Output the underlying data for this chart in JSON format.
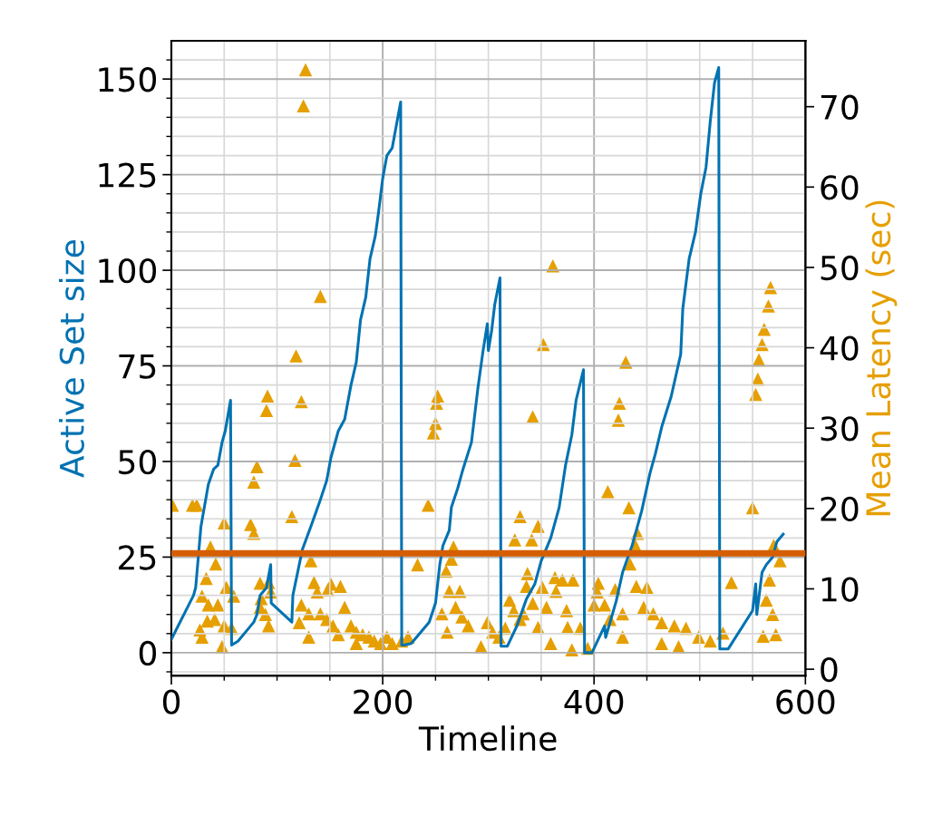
{
  "chart_data": {
    "type": "line",
    "xlabel": "Timeline",
    "ylabel": "Active Set size",
    "y2label": "Mean Latency (sec)",
    "xlim": [
      0,
      600
    ],
    "xticks": [
      0,
      {
        "value": 50,
        "label": null
      },
      {
        "value": 100,
        "label": null
      },
      {
        "value": 150,
        "label": null
      },
      200,
      {
        "value": 250,
        "label": null
      },
      {
        "value": 300,
        "label": null
      },
      {
        "value": 350,
        "label": null
      },
      400,
      {
        "value": 450,
        "label": null
      },
      {
        "value": 500,
        "label": null
      },
      {
        "value": 550,
        "label": null
      },
      600
    ],
    "ylim": [
      -6,
      160
    ],
    "yticks": [
      {
        "value": -5,
        "label": null
      },
      0,
      {
        "value": 5,
        "label": null
      },
      {
        "value": 10,
        "label": null
      },
      {
        "value": 15,
        "label": null
      },
      {
        "value": 20,
        "label": null
      },
      25,
      {
        "value": 30,
        "label": null
      },
      {
        "value": 35,
        "label": null
      },
      {
        "value": 40,
        "label": null
      },
      {
        "value": 45,
        "label": null
      },
      50,
      {
        "value": 55,
        "label": null
      },
      {
        "value": 60,
        "label": null
      },
      {
        "value": 65,
        "label": null
      },
      {
        "value": 70,
        "label": null
      },
      75,
      {
        "value": 80,
        "label": null
      },
      {
        "value": 85,
        "label": null
      },
      {
        "value": 90,
        "label": null
      },
      {
        "value": 95,
        "label": null
      },
      100,
      {
        "value": 105,
        "label": null
      },
      {
        "value": 110,
        "label": null
      },
      {
        "value": 115,
        "label": null
      },
      {
        "value": 120,
        "label": null
      },
      125,
      {
        "value": 130,
        "label": null
      },
      {
        "value": 135,
        "label": null
      },
      {
        "value": 140,
        "label": null
      },
      {
        "value": 145,
        "label": null
      },
      150,
      {
        "value": 155,
        "label": null
      }
    ],
    "y2lim": [
      -0.8,
      78.2
    ],
    "y2ticks": [
      0,
      10,
      20,
      30,
      40,
      50,
      60,
      70
    ],
    "grid": true,
    "series": [
      {
        "color": "#0072b2",
        "marker": "none",
        "line_style": "solid",
        "x": [
          0,
          21,
          23,
          28,
          35,
          40,
          44,
          48,
          51,
          56,
          57,
          63,
          75,
          78,
          81,
          84,
          90,
          94,
          94.5,
          114,
          115,
          124,
          132,
          141,
          147,
          151,
          158,
          164,
          170,
          175,
          179,
          184,
          188,
          193,
          196,
          200,
          204,
          209,
          213,
          217,
          218,
          220,
          227,
          244,
          250,
          254,
          257,
          263,
          265,
          271,
          276,
          284,
          290,
          295,
          299,
          300,
          303,
          306,
          311,
          312,
          318,
          327,
          336,
          344,
          350,
          359,
          367,
          373,
          379,
          383,
          390,
          391,
          398,
          410,
          411,
          421,
          427,
          436,
          445,
          453,
          458,
          464,
          473,
          482,
          484,
          490,
          496,
          501,
          506,
          510,
          514,
          518,
          519,
          527,
          550,
          553,
          554,
          559,
          563,
          569,
          573,
          579
        ],
        "values": [
          3.5,
          15,
          17,
          33,
          44,
          48,
          49,
          55,
          58,
          66,
          2,
          3,
          7,
          8,
          10,
          15,
          17,
          23,
          13,
          8,
          15,
          27,
          33,
          40,
          45,
          51,
          58,
          61,
          70,
          76,
          87,
          93,
          103,
          109,
          115,
          124,
          130,
          132,
          138,
          144,
          2,
          2,
          2.4,
          8,
          13,
          23,
          28,
          32,
          38,
          43,
          48,
          55,
          69,
          79,
          86,
          79,
          84,
          91,
          98,
          1.7,
          1.7,
          7,
          14,
          18,
          24,
          30,
          38,
          49,
          57,
          66,
          74,
          0,
          0,
          7,
          4,
          13.5,
          21,
          28,
          37,
          47,
          52,
          59,
          67,
          78,
          90,
          103,
          110,
          120,
          127,
          139,
          149,
          153,
          1,
          1,
          11,
          18,
          10,
          21,
          23,
          25,
          29,
          31
        ]
      },
      {
        "type": "scatter",
        "axis": "y2",
        "color": "#e69f00",
        "marker": "triangle",
        "x": [
          1,
          20,
          24,
          50,
          37,
          42,
          33,
          29,
          35,
          44,
          27,
          34,
          41,
          50,
          57,
          29,
          48,
          52,
          59,
          78,
          75,
          78,
          81,
          91,
          90,
          84,
          92,
          85,
          94,
          84,
          89,
          92,
          114,
          117,
          123,
          118,
          127,
          125,
          141,
          132,
          135,
          138,
          123,
          121,
          130,
          130,
          141,
          148,
          151,
          160,
          147,
          153,
          164,
          158,
          170,
          175,
          181,
          175,
          187,
          192,
          198,
          204,
          209,
          218,
          224,
          233,
          243,
          248,
          250,
          251,
          252,
          267,
          265,
          260,
          263,
          273,
          256,
          269,
          275,
          261,
          281,
          293,
          299,
          304,
          310,
          316,
          320,
          324,
          330,
          333,
          325,
          330,
          337,
          336,
          341,
          342,
          342,
          347,
          347,
          351,
          352,
          355,
          359,
          361,
          363,
          364,
          370,
          374,
          375,
          379,
          380,
          387,
          394,
          400,
          403,
          404,
          410,
          413,
          415,
          420,
          423,
          424,
          427,
          427,
          430,
          433,
          434,
          439,
          440,
          441,
          447,
          450,
          456,
          464,
          464,
          476,
          480,
          487,
          499,
          510,
          522,
          530,
          550,
          553,
          555,
          556,
          559,
          560,
          561,
          563,
          565,
          566,
          567,
          569,
          570,
          572,
          576
        ],
        "values": [
          20.4,
          20.4,
          20.4,
          18.2,
          15.2,
          13.1,
          11.3,
          9.1,
          8,
          8,
          4.9,
          6,
          6.2,
          5.4,
          5.1,
          4,
          2.8,
          10.2,
          9.1,
          16.9,
          18,
          23.3,
          25.2,
          34,
          32.2,
          10.7,
          10.8,
          8.8,
          9.6,
          7.7,
          6.8,
          5.4,
          19,
          26,
          33.3,
          39,
          74.6,
          70.1,
          46.4,
          13.5,
          10.8,
          9.6,
          8,
          5.8,
          6.9,
          4,
          6.9,
          9.9,
          10.6,
          10.3,
          6.2,
          5.4,
          7.7,
          4.3,
          5.4,
          4.6,
          4.3,
          3.2,
          4,
          3.5,
          3.2,
          4,
          3.2,
          3.5,
          4,
          13,
          20.4,
          29.4,
          30.6,
          33.1,
          34,
          15.2,
          13.7,
          12.2,
          9.7,
          9.7,
          6.9,
          7.7,
          6.5,
          4.6,
          5.4,
          2.8,
          5.8,
          4.6,
          4,
          5.1,
          8.6,
          7.3,
          6.2,
          6.9,
          16.1,
          19,
          11.9,
          10.3,
          16.1,
          31.4,
          8.2,
          17.8,
          5.2,
          10.2,
          40.4,
          7.7,
          3.2,
          50.2,
          11.4,
          9.7,
          11.1,
          7.3,
          5.2,
          2.4,
          11.1,
          5.1,
          2.6,
          8,
          9.6,
          10.7,
          8,
          22.1,
          6.2,
          9.9,
          31,
          33.1,
          6.9,
          4,
          38.2,
          20.1,
          13.1,
          15.4,
          10.3,
          16.9,
          7.7,
          10.2,
          6.9,
          5.8,
          3.2,
          5.4,
          2.8,
          5.1,
          4,
          3.5,
          4.5,
          10.8,
          20.1,
          34.2,
          36.1,
          38.5,
          40.4,
          4.1,
          42.3,
          8.6,
          45.2,
          11.1,
          47.5,
          6.8,
          15.4,
          4.3,
          13.5
        ]
      }
    ],
    "ref_lines": [
      {
        "axis": "y",
        "value": 26,
        "color": "#d55e00",
        "line_style": "solid"
      }
    ]
  }
}
